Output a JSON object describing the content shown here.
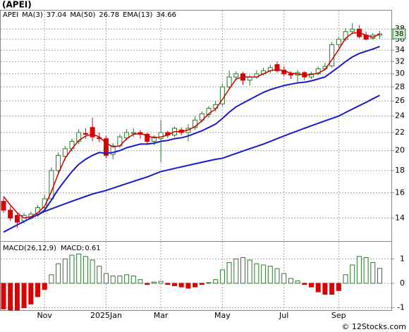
{
  "chart_data": [
    {
      "type": "candlestick",
      "title": "(APEI)",
      "symbol": "APEI",
      "credit": "© 12Stocks.com",
      "price_tag": "38",
      "categories": [
        null,
        null,
        null,
        null,
        null,
        null,
        "Nov",
        null,
        null,
        null,
        null,
        null,
        null,
        null,
        null,
        "2025Jan",
        null,
        null,
        null,
        null,
        null,
        null,
        null,
        "Mar",
        null,
        null,
        null,
        null,
        null,
        null,
        null,
        null,
        "May",
        null,
        null,
        null,
        null,
        null,
        null,
        null,
        null,
        "Jul",
        null,
        null,
        null,
        null,
        null,
        null,
        null,
        "Sep",
        null,
        null,
        null,
        null,
        null,
        null
      ],
      "ohlc": [
        [
          15.3,
          15.6,
          14.4,
          14.6
        ],
        [
          14.6,
          14.9,
          13.8,
          14.0
        ],
        [
          14.2,
          14.4,
          13.3,
          13.7
        ],
        [
          13.8,
          14.4,
          13.6,
          14.2
        ],
        [
          14.0,
          14.5,
          13.9,
          14.3
        ],
        [
          14.3,
          15.0,
          14.1,
          14.8
        ],
        [
          14.8,
          15.8,
          14.6,
          15.5
        ],
        [
          15.5,
          18.3,
          15.4,
          18.0
        ],
        [
          18.0,
          19.8,
          17.6,
          19.5
        ],
        [
          19.4,
          20.5,
          19.0,
          20.2
        ],
        [
          20.2,
          21.3,
          19.9,
          21.0
        ],
        [
          21.0,
          22.4,
          20.7,
          22.0
        ],
        [
          21.9,
          22.5,
          21.3,
          21.8
        ],
        [
          22.6,
          23.8,
          21.0,
          21.5
        ],
        [
          21.4,
          22.0,
          20.9,
          21.3
        ],
        [
          21.3,
          21.6,
          19.2,
          19.5
        ],
        [
          19.6,
          20.8,
          19.1,
          20.5
        ],
        [
          20.5,
          21.8,
          20.3,
          21.5
        ],
        [
          21.4,
          22.4,
          21.1,
          22.0
        ],
        [
          21.9,
          22.5,
          21.5,
          22.0
        ],
        [
          22.0,
          22.3,
          21.3,
          21.8
        ],
        [
          21.8,
          22.0,
          20.7,
          21.0
        ],
        [
          21.0,
          21.7,
          20.6,
          21.5
        ],
        [
          21.3,
          23.5,
          18.8,
          22.0
        ],
        [
          22.0,
          22.2,
          21.4,
          21.7
        ],
        [
          21.7,
          22.7,
          21.5,
          22.5
        ],
        [
          22.3,
          22.6,
          21.7,
          22.0
        ],
        [
          22.0,
          23.0,
          21.0,
          22.5
        ],
        [
          22.6,
          24.0,
          22.3,
          23.5
        ],
        [
          23.5,
          24.6,
          23.2,
          24.3
        ],
        [
          24.2,
          25.3,
          23.8,
          25.0
        ],
        [
          25.0,
          26.0,
          24.6,
          25.5
        ],
        [
          25.6,
          28.5,
          25.3,
          28.0
        ],
        [
          28.0,
          30.5,
          27.6,
          29.5
        ],
        [
          29.5,
          30.4,
          29.0,
          30.0
        ],
        [
          30.0,
          30.3,
          28.3,
          29.0
        ],
        [
          29.0,
          29.8,
          28.2,
          29.5
        ],
        [
          29.5,
          30.6,
          29.2,
          30.0
        ],
        [
          30.0,
          31.0,
          29.7,
          30.5
        ],
        [
          30.5,
          31.5,
          30.1,
          31.0
        ],
        [
          31.5,
          32.0,
          30.2,
          30.5
        ],
        [
          30.6,
          31.2,
          29.6,
          30.0
        ],
        [
          30.0,
          30.4,
          29.2,
          29.8
        ],
        [
          29.8,
          30.6,
          28.7,
          30.2
        ],
        [
          30.2,
          30.4,
          29.0,
          29.5
        ],
        [
          29.5,
          30.3,
          29.2,
          30.0
        ],
        [
          30.0,
          31.2,
          29.8,
          30.8
        ],
        [
          30.8,
          31.8,
          30.5,
          31.2
        ],
        [
          31.3,
          35.5,
          31.0,
          35.0
        ],
        [
          35.0,
          36.4,
          34.5,
          36.0
        ],
        [
          36.0,
          38.2,
          35.6,
          37.5
        ],
        [
          37.5,
          39.2,
          37.0,
          38.0
        ],
        [
          38.0,
          38.8,
          36.2,
          36.5
        ],
        [
          36.8,
          37.5,
          35.8,
          36.0
        ],
        [
          36.2,
          37.2,
          35.9,
          36.8
        ],
        [
          36.8,
          37.6,
          36.1,
          37.04
        ]
      ],
      "up_color": "#2a7a2a",
      "down_color": "#dd0000",
      "series": [
        {
          "name": "MA(3)",
          "color": "#cc0000",
          "values": [
            15.7,
            15.0,
            14.4,
            14.0,
            14.1,
            14.4,
            14.9,
            16.1,
            17.7,
            19.2,
            20.2,
            21.1,
            21.6,
            21.8,
            21.5,
            20.8,
            20.4,
            20.5,
            21.3,
            21.8,
            21.9,
            21.6,
            21.4,
            21.5,
            21.7,
            22.1,
            22.1,
            22.3,
            22.7,
            23.4,
            24.3,
            24.9,
            26.2,
            27.7,
            29.2,
            29.5,
            29.5,
            29.5,
            30.0,
            30.5,
            30.7,
            30.5,
            30.1,
            30.0,
            29.8,
            29.9,
            30.1,
            30.7,
            32.3,
            34.1,
            36.2,
            37.2,
            37.3,
            36.8,
            36.4,
            37.04
          ]
        },
        {
          "name": "MA(50)",
          "color": "#1a1acc",
          "values": [
            13.0,
            13.25,
            13.5,
            13.75,
            14.0,
            14.25,
            14.5,
            14.7,
            14.9,
            15.1,
            15.3,
            15.5,
            15.7,
            15.9,
            16.05,
            16.2,
            16.4,
            16.6,
            16.8,
            17.0,
            17.2,
            17.4,
            17.65,
            17.9,
            18.05,
            18.2,
            18.35,
            18.5,
            18.65,
            18.8,
            18.95,
            19.1,
            19.2,
            19.45,
            19.7,
            19.95,
            20.2,
            20.45,
            20.7,
            21.0,
            21.3,
            21.6,
            21.9,
            22.2,
            22.5,
            22.8,
            23.1,
            23.4,
            23.7,
            24.0,
            24.45,
            24.9,
            25.35,
            25.8,
            26.3,
            26.78
          ]
        },
        {
          "name": "EMA(13)",
          "color": "#1a1acc",
          "values": [
            null,
            null,
            null,
            null,
            null,
            14.2,
            14.6,
            15.4,
            16.3,
            17.1,
            17.9,
            18.6,
            19.1,
            19.5,
            19.8,
            19.7,
            19.8,
            20.0,
            20.3,
            20.5,
            20.7,
            20.7,
            20.8,
            21.0,
            21.1,
            21.3,
            21.4,
            21.6,
            21.9,
            22.2,
            22.6,
            23.0,
            23.7,
            24.5,
            25.2,
            25.7,
            26.2,
            26.7,
            27.2,
            27.6,
            27.9,
            28.2,
            28.4,
            28.6,
            28.7,
            28.9,
            29.2,
            29.5,
            30.3,
            31.1,
            32.0,
            32.8,
            33.4,
            33.8,
            34.2,
            34.66
          ]
        }
      ],
      "ylim": [
        12.4,
        41.9
      ],
      "yticks": [
        14,
        16,
        18,
        20,
        22,
        24,
        26,
        28,
        30,
        32,
        34,
        36,
        38
      ],
      "log_scale": true,
      "grid": true
    },
    {
      "type": "bar",
      "title": "MACD(26,12,9)",
      "up_color": "#2a7a2a",
      "down_color": "#dd0000",
      "series": [
        {
          "name": "MACD:",
          "color": "#1a1acc",
          "values": [
            -1.05,
            -1.1,
            -1.1,
            -1.0,
            -0.85,
            -0.55,
            -0.25,
            0.35,
            0.8,
            1.0,
            1.15,
            1.2,
            1.1,
            0.95,
            0.7,
            0.4,
            0.3,
            0.3,
            0.35,
            0.3,
            0.15,
            -0.05,
            0.05,
            0.08,
            -0.05,
            -0.1,
            -0.15,
            -0.2,
            -0.15,
            -0.05,
            0.03,
            0.15,
            0.55,
            0.85,
            1.0,
            1.05,
            0.95,
            0.8,
            0.75,
            0.7,
            0.6,
            0.4,
            0.2,
            0.1,
            -0.05,
            -0.15,
            -0.35,
            -0.45,
            -0.45,
            -0.3,
            0.35,
            0.75,
            1.1,
            1.05,
            0.85,
            0.61
          ]
        }
      ],
      "ylim": [
        -1.1,
        1.7
      ],
      "yticks": [
        1,
        0,
        -1
      ],
      "grid": true
    }
  ]
}
